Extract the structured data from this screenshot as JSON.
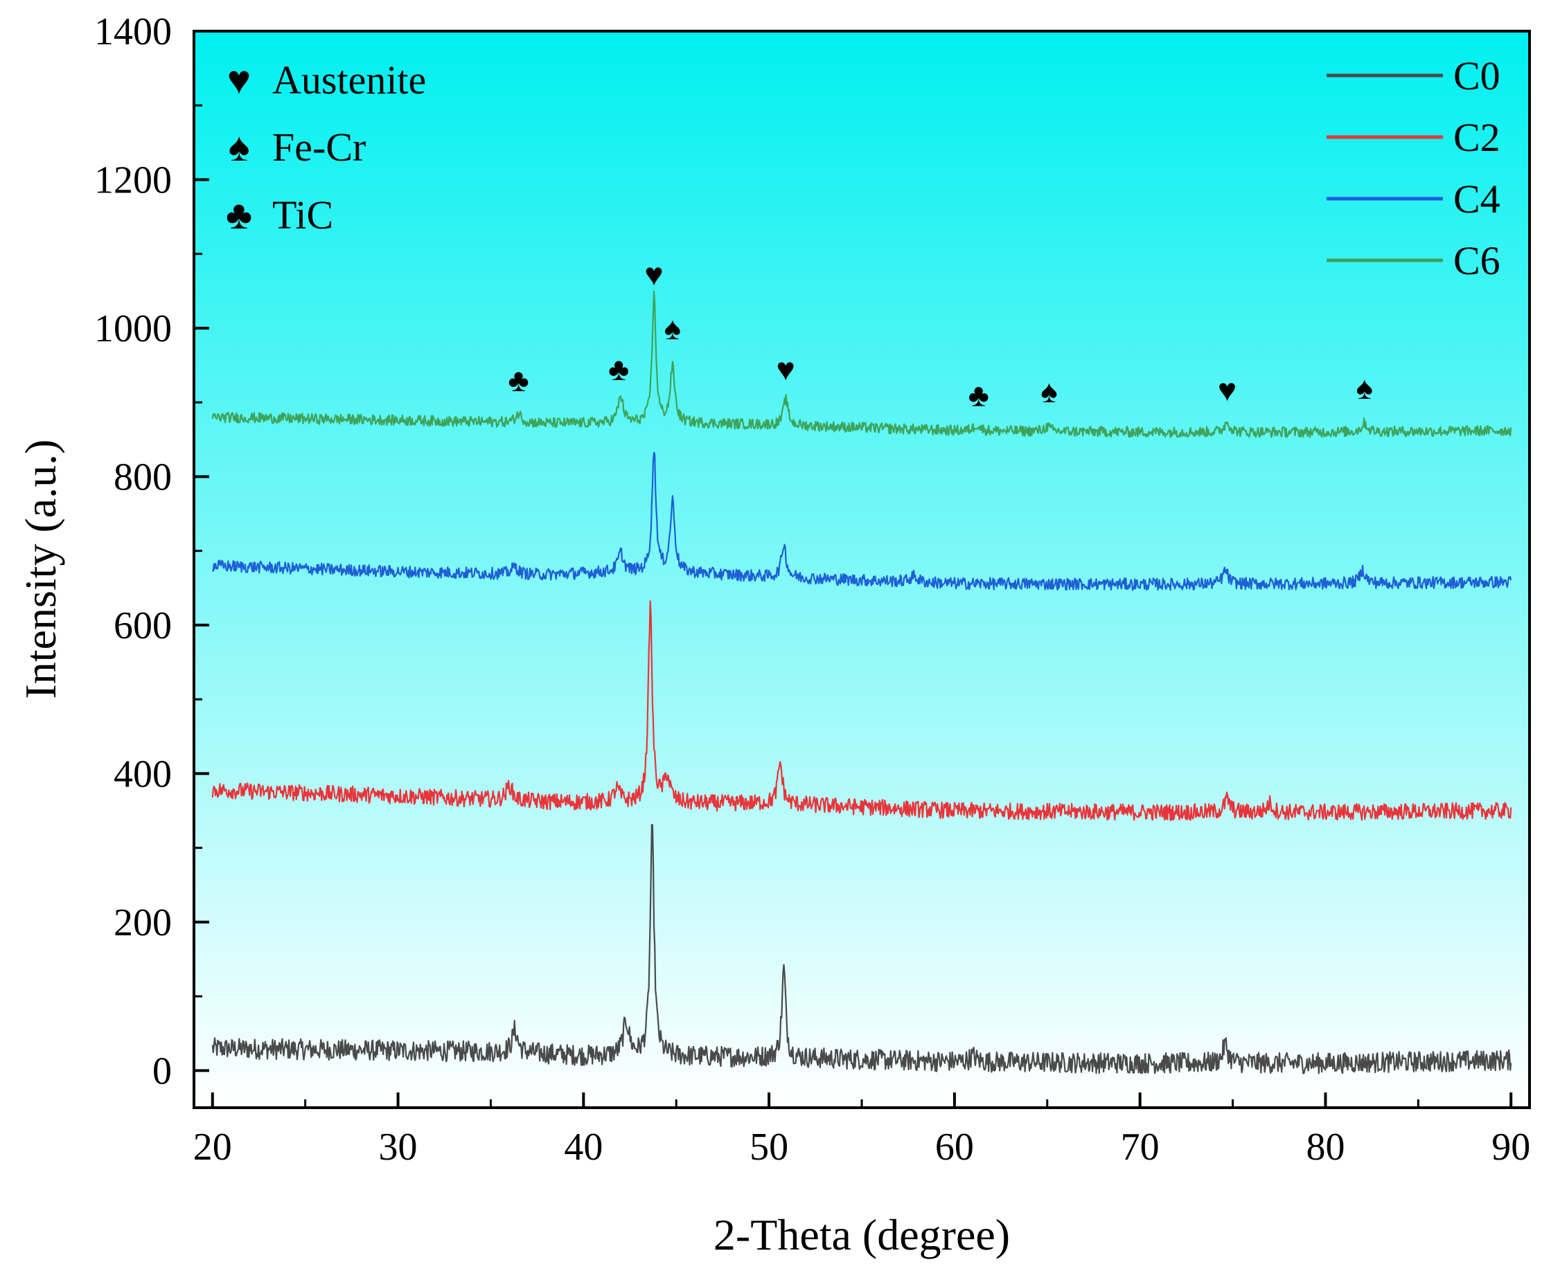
{
  "chart_data": {
    "type": "line",
    "title": "",
    "xlabel": "2-Theta (degree)",
    "ylabel": "Intensity (a.u.)",
    "xlim": [
      19,
      91
    ],
    "ylim": [
      -50,
      1400
    ],
    "xticks": [
      20,
      30,
      40,
      50,
      60,
      70,
      80,
      90
    ],
    "yticks": [
      0,
      200,
      400,
      600,
      800,
      1000,
      1200,
      1400
    ],
    "background_gradient": [
      "#00f0f0",
      "#ffffff"
    ],
    "legend_position": "top-right",
    "series": [
      {
        "name": "C0",
        "color": "#4a4a4a",
        "baseline": [
          [
            20,
            30
          ],
          [
            36,
            25
          ],
          [
            40,
            20
          ],
          [
            50,
            18
          ],
          [
            60,
            12
          ],
          [
            70,
            10
          ],
          [
            80,
            10
          ],
          [
            90,
            14
          ]
        ],
        "noise": 14,
        "peaks": [
          [
            36.3,
            30,
            0.35
          ],
          [
            42.3,
            45,
            0.4
          ],
          [
            43.7,
            305,
            0.25
          ],
          [
            50.8,
            120,
            0.25
          ],
          [
            61.0,
            8,
            0.4
          ],
          [
            74.6,
            25,
            0.35
          ]
        ]
      },
      {
        "name": "C2",
        "color": "#e8353a",
        "baseline": [
          [
            20,
            378
          ],
          [
            30,
            370
          ],
          [
            38,
            362
          ],
          [
            45,
            360
          ],
          [
            50,
            360
          ],
          [
            60,
            350
          ],
          [
            70,
            348
          ],
          [
            80,
            348
          ],
          [
            90,
            350
          ]
        ],
        "noise": 11,
        "peaks": [
          [
            36.0,
            20,
            0.4
          ],
          [
            41.8,
            18,
            0.4
          ],
          [
            43.6,
            265,
            0.25
          ],
          [
            44.5,
            35,
            0.4
          ],
          [
            50.6,
            55,
            0.3
          ],
          [
            74.7,
            18,
            0.35
          ],
          [
            77.0,
            12,
            0.35
          ]
        ]
      },
      {
        "name": "C4",
        "color": "#1f5fd6",
        "baseline": [
          [
            20,
            680
          ],
          [
            30,
            672
          ],
          [
            38,
            668
          ],
          [
            42,
            672
          ],
          [
            46,
            670
          ],
          [
            50,
            665
          ],
          [
            60,
            656
          ],
          [
            70,
            655
          ],
          [
            80,
            656
          ],
          [
            90,
            658
          ]
        ],
        "noise": 8,
        "peaks": [
          [
            36.3,
            10,
            0.4
          ],
          [
            42.0,
            25,
            0.35
          ],
          [
            43.8,
            165,
            0.25
          ],
          [
            44.8,
            95,
            0.3
          ],
          [
            50.8,
            45,
            0.3
          ],
          [
            57.8,
            8,
            0.5
          ],
          [
            74.6,
            18,
            0.35
          ],
          [
            82.0,
            18,
            0.35
          ]
        ]
      },
      {
        "name": "C6",
        "color": "#3fa35a",
        "baseline": [
          [
            20,
            880
          ],
          [
            30,
            876
          ],
          [
            38,
            872
          ],
          [
            46,
            872
          ],
          [
            50,
            870
          ],
          [
            60,
            862
          ],
          [
            70,
            860
          ],
          [
            80,
            860
          ],
          [
            90,
            862
          ]
        ],
        "noise": 7,
        "peaks": [
          [
            36.5,
            12,
            0.4
          ],
          [
            42.0,
            35,
            0.35
          ],
          [
            43.8,
            170,
            0.25
          ],
          [
            44.8,
            75,
            0.3
          ],
          [
            50.9,
            35,
            0.3
          ],
          [
            61.2,
            8,
            0.4
          ],
          [
            65.0,
            6,
            0.4
          ],
          [
            74.7,
            14,
            0.35
          ],
          [
            82.1,
            12,
            0.35
          ]
        ]
      }
    ],
    "phase_legend": [
      {
        "symbol": "♥",
        "label": "Austenite"
      },
      {
        "symbol": "♠",
        "label": "Fe-Cr"
      },
      {
        "symbol": "♣",
        "label": "TiC"
      }
    ],
    "annotations": [
      {
        "symbol": "♣",
        "x": 36.5,
        "y": 915
      },
      {
        "symbol": "♣",
        "x": 41.9,
        "y": 930
      },
      {
        "symbol": "♥",
        "x": 43.8,
        "y": 1058
      },
      {
        "symbol": "♠",
        "x": 44.8,
        "y": 985
      },
      {
        "symbol": "♥",
        "x": 50.9,
        "y": 930
      },
      {
        "symbol": "♣",
        "x": 61.3,
        "y": 895
      },
      {
        "symbol": "♠",
        "x": 65.1,
        "y": 900
      },
      {
        "symbol": "♥",
        "x": 74.7,
        "y": 902
      },
      {
        "symbol": "♠",
        "x": 82.1,
        "y": 905
      }
    ]
  }
}
